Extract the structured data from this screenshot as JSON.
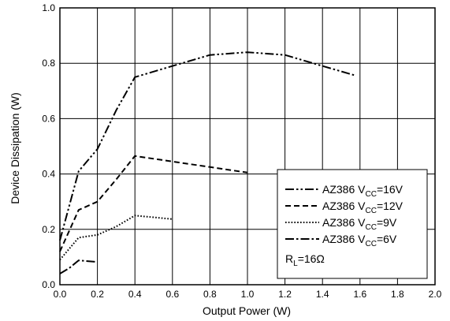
{
  "chart_data": {
    "type": "line",
    "xlabel": "Output Power (W)",
    "ylabel": "Device Dissipation (W)",
    "xlim": [
      0,
      2.0
    ],
    "ylim": [
      0,
      1.0
    ],
    "x_ticks": [
      "0.0",
      "0.2",
      "0.4",
      "0.6",
      "0.8",
      "1.0",
      "1.2",
      "1.4",
      "1.6",
      "1.8",
      "2.0"
    ],
    "y_ticks": [
      "0.0",
      "0.2",
      "0.4",
      "0.6",
      "0.8",
      "1.0"
    ],
    "grid": true,
    "legend_position": "bottom-right",
    "series": [
      {
        "name": "AZ386 VCC=16V",
        "name_parts": {
          "prefix": "AZ386 V",
          "sub": "CC",
          "suffix": "=16V"
        },
        "style": "dash-dot-dot",
        "x": [
          0.0,
          0.1,
          0.2,
          0.3,
          0.4,
          0.6,
          0.8,
          1.0,
          1.2,
          1.4,
          1.58
        ],
        "y": [
          0.16,
          0.41,
          0.49,
          0.63,
          0.75,
          0.79,
          0.83,
          0.84,
          0.83,
          0.79,
          0.755
        ]
      },
      {
        "name": "AZ386 VCC=12V",
        "name_parts": {
          "prefix": "AZ386 V",
          "sub": "CC",
          "suffix": "=12V"
        },
        "style": "dash",
        "x": [
          0.0,
          0.1,
          0.2,
          0.3,
          0.4,
          0.6,
          0.8,
          1.0
        ],
        "y": [
          0.12,
          0.27,
          0.3,
          0.38,
          0.465,
          0.445,
          0.425,
          0.405
        ]
      },
      {
        "name": "AZ386 VCC=9V",
        "name_parts": {
          "prefix": "AZ386 V",
          "sub": "CC",
          "suffix": "=9V"
        },
        "style": "dot",
        "x": [
          0.0,
          0.1,
          0.2,
          0.3,
          0.4,
          0.6
        ],
        "y": [
          0.09,
          0.17,
          0.18,
          0.21,
          0.25,
          0.237
        ]
      },
      {
        "name": "AZ386 VCC=6V",
        "name_parts": {
          "prefix": "AZ386 V",
          "sub": "CC",
          "suffix": "=6V"
        },
        "style": "dash-dot",
        "x": [
          0.0,
          0.05,
          0.1,
          0.2
        ],
        "y": [
          0.04,
          0.06,
          0.088,
          0.082
        ]
      }
    ],
    "annotation": {
      "prefix": "R",
      "sub": "L",
      "suffix": "=16Ω"
    }
  }
}
